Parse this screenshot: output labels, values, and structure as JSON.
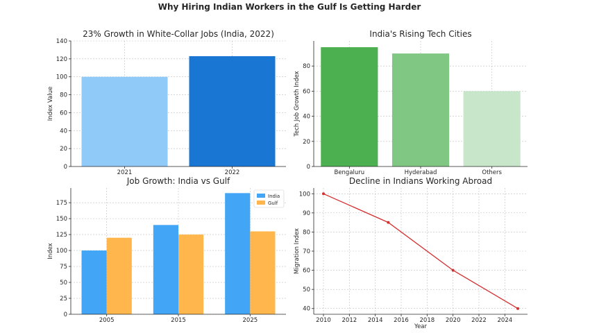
{
  "figure": {
    "title": "Why Hiring Indian Workers in the Gulf Is Getting Harder"
  },
  "chart_data": [
    {
      "type": "bar",
      "title": "23% Growth in White-Collar Jobs (India, 2022)",
      "categories": [
        "2021",
        "2022"
      ],
      "values": [
        100,
        123
      ],
      "colors": [
        "#90caf9",
        "#1976d2"
      ],
      "xlabel": "",
      "ylabel": "Index Value",
      "ylim": [
        0,
        140
      ],
      "yticks": [
        0,
        20,
        40,
        60,
        80,
        100,
        120,
        140
      ],
      "grid": true
    },
    {
      "type": "bar",
      "title": "India's Rising Tech Cities",
      "categories": [
        "Bengaluru",
        "Hyderabad",
        "Others"
      ],
      "values": [
        95,
        90,
        60
      ],
      "colors": [
        "#4caf50",
        "#81c784",
        "#c8e6c9"
      ],
      "xlabel": "",
      "ylabel": "Tech Job Growth Index",
      "ylim": [
        0,
        100
      ],
      "yticks": [
        0,
        20,
        40,
        60,
        80
      ],
      "grid": true
    },
    {
      "type": "bar",
      "title": "Job Growth: India vs Gulf",
      "categories": [
        "2005",
        "2015",
        "2025"
      ],
      "series": [
        {
          "name": "India",
          "values": [
            100,
            140,
            190
          ],
          "color": "#42a5f5"
        },
        {
          "name": "Gulf",
          "values": [
            120,
            125,
            130
          ],
          "color": "#ffb74d"
        }
      ],
      "xlabel": "",
      "ylabel": "Index",
      "ylim": [
        0,
        198
      ],
      "yticks": [
        0,
        25,
        50,
        75,
        100,
        125,
        150,
        175
      ],
      "legend": "top-right",
      "grid": true
    },
    {
      "type": "line",
      "title": "Decline in Indians Working Abroad",
      "x": [
        2010,
        2015,
        2020,
        2025
      ],
      "values": [
        100,
        85,
        60,
        40
      ],
      "color": "#d32f2f",
      "xlabel": "Year",
      "ylabel": "Migration Index",
      "xlim": [
        2009.25,
        2025.75
      ],
      "ylim": [
        37,
        103
      ],
      "xticks": [
        2010,
        2012,
        2014,
        2016,
        2018,
        2020,
        2022,
        2024
      ],
      "yticks": [
        40,
        50,
        60,
        70,
        80,
        90,
        100
      ],
      "grid": true
    }
  ]
}
